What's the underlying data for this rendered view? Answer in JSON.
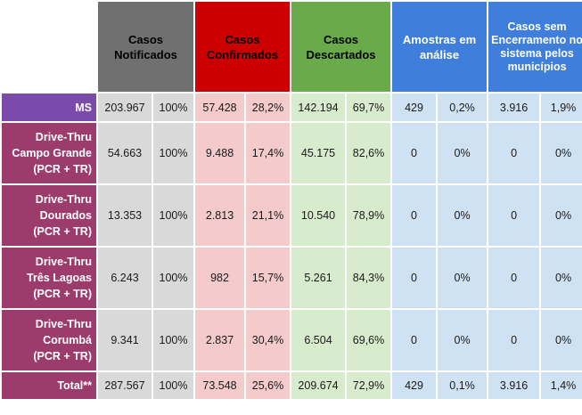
{
  "headers": {
    "notificados": "Casos Notificados",
    "confirmados": "Casos Confirmados",
    "descartados": "Casos Descartados",
    "amostras": "Amostras em análise",
    "sem_encerramento": "Casos sem Encerramento no sistema pelos municípios"
  },
  "rows": [
    {
      "label": [
        "MS"
      ],
      "notif": "203.967",
      "notif_pct": "100%",
      "conf": "57.428",
      "conf_pct": "28,2%",
      "desc": "142.194",
      "desc_pct": "69,7%",
      "amos": "429",
      "amos_pct": "0,2%",
      "sem": "3.916",
      "sem_pct": "1,9%"
    },
    {
      "label": [
        "Drive-Thru",
        "Campo Grande",
        "(PCR + TR)"
      ],
      "notif": "54.663",
      "notif_pct": "100%",
      "conf": "9.488",
      "conf_pct": "17,4%",
      "desc": "45.175",
      "desc_pct": "82,6%",
      "amos": "0",
      "amos_pct": "0%",
      "sem": "0",
      "sem_pct": "0%"
    },
    {
      "label": [
        "Drive-Thru",
        "Dourados",
        "(PCR + TR)"
      ],
      "notif": "13.353",
      "notif_pct": "100%",
      "conf": "2.813",
      "conf_pct": "21,1%",
      "desc": "10.540",
      "desc_pct": "78,9%",
      "amos": "0",
      "amos_pct": "0%",
      "sem": "0",
      "sem_pct": "0%"
    },
    {
      "label": [
        "Drive-Thru",
        "Três Lagoas",
        "(PCR + TR)"
      ],
      "notif": "6.243",
      "notif_pct": "100%",
      "conf": "982",
      "conf_pct": "15,7%",
      "desc": "5.261",
      "desc_pct": "84,3%",
      "amos": "0",
      "amos_pct": "0%",
      "sem": "0",
      "sem_pct": "0%"
    },
    {
      "label": [
        "Drive-Thru",
        "Corumbá",
        "(PCR + TR)"
      ],
      "notif": "9.341",
      "notif_pct": "100%",
      "conf": "2.837",
      "conf_pct": "30,4%",
      "desc": "6.504",
      "desc_pct": "69,6%",
      "amos": "0",
      "amos_pct": "0%",
      "sem": "0",
      "sem_pct": "0%"
    },
    {
      "label": [
        "Total**"
      ],
      "notif": "287.567",
      "notif_pct": "100%",
      "conf": "73.548",
      "conf_pct": "25,6%",
      "desc": "209.674",
      "desc_pct": "72,9%",
      "amos": "429",
      "amos_pct": "0,1%",
      "sem": "3.916",
      "sem_pct": "1,4%"
    }
  ]
}
